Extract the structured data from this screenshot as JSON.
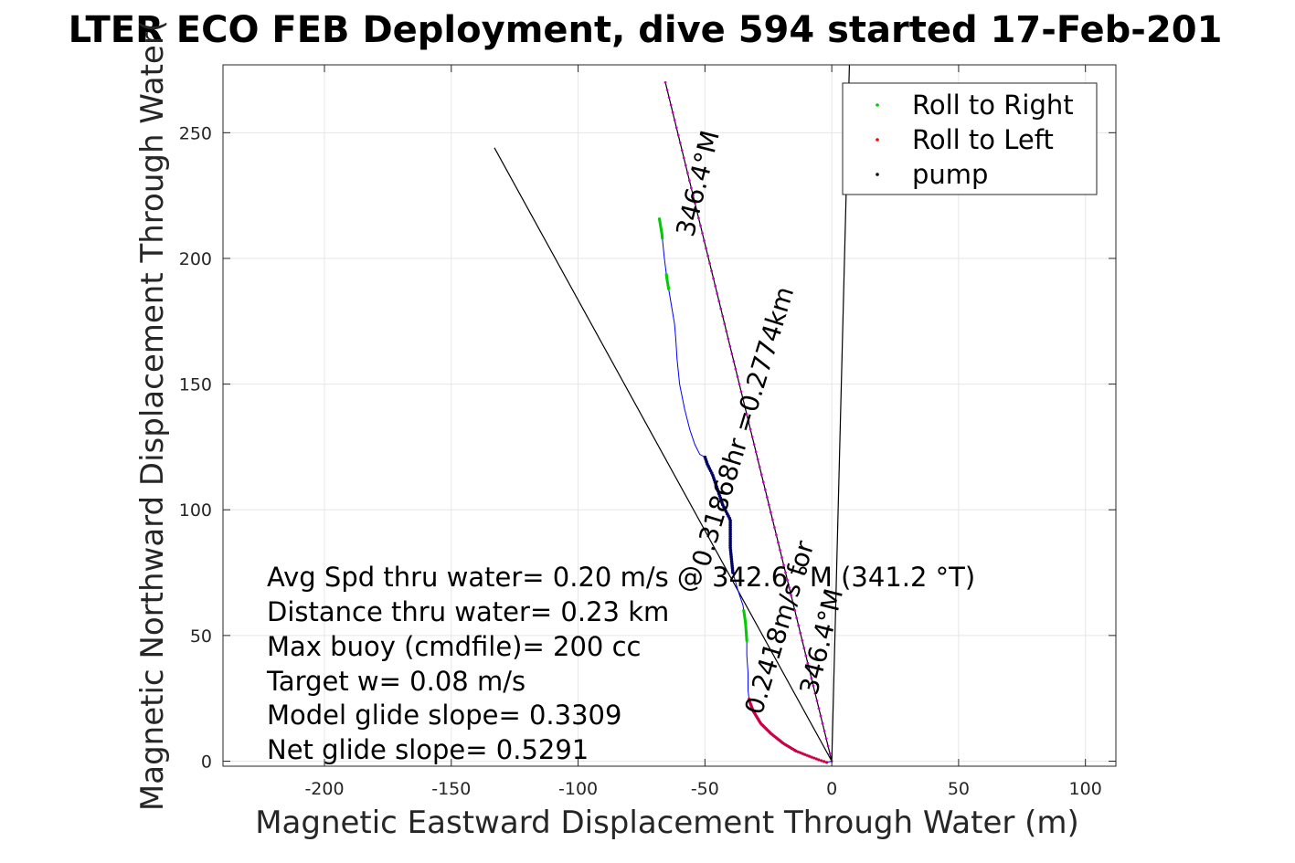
{
  "chart_data": {
    "type": "scatter",
    "title": "LTER ECO FEB Deployment, dive 594 started 17-Feb-201",
    "xlabel": "Magnetic Eastward Displacement Through Water (m)",
    "ylabel": "Magnetic Northward Displacement Through Water(",
    "xlim": [
      -240,
      112
    ],
    "ylim": [
      -2,
      277
    ],
    "xticks": [
      -200,
      -150,
      -100,
      -50,
      0,
      50,
      100
    ],
    "yticks": [
      0,
      50,
      100,
      150,
      200,
      250
    ],
    "grid": true,
    "legend_position": "top-right",
    "legend": [
      {
        "label": "Roll to Right",
        "color": "#00cc00"
      },
      {
        "label": "Roll to Left",
        "color": "#ff0000"
      },
      {
        "label": "pump",
        "color": "#000000"
      }
    ],
    "track": {
      "color": "#0000ff",
      "x": [
        -68,
        -67,
        -66,
        -65,
        -64,
        -63,
        -62,
        -61.5,
        -61,
        -60,
        -58,
        -56,
        -54,
        -52,
        -50,
        -49,
        -47,
        -45,
        -43,
        -41,
        -40,
        -40,
        -40,
        -39.5,
        -39,
        -37,
        -35,
        -34,
        -33.5,
        -33.5,
        -33,
        -33,
        -32.5,
        -31,
        -28,
        -24,
        -19,
        -14,
        -9,
        -5,
        -2,
        0
      ],
      "y": [
        216,
        210,
        200,
        192,
        186,
        180,
        174,
        168,
        160,
        150,
        140,
        132,
        126,
        122,
        121,
        118,
        114,
        108,
        102,
        98,
        96,
        90,
        85,
        80,
        75,
        68,
        62,
        55,
        48,
        42,
        35,
        28,
        24,
        20,
        15,
        11,
        7,
        4,
        2,
        0.5,
        -0.5,
        0
      ]
    },
    "roll_right_segments": [
      [
        -67.5,
        -66
      ],
      [
        -64.5,
        -62.5
      ],
      [
        -34.5,
        -33
      ]
    ],
    "roll_right_y": [
      [
        216,
        208
      ],
      [
        194,
        188
      ],
      [
        60,
        48
      ]
    ],
    "pump_range_y": [
      75,
      121
    ],
    "roll_left_range_y": [
      -0.5,
      25
    ],
    "lines": [
      {
        "x": [
          0,
          -65.6
        ],
        "y": [
          0,
          270
        ],
        "color": "#000000"
      },
      {
        "x": [
          0,
          -133
        ],
        "y": [
          0,
          244
        ],
        "color": "#000000"
      },
      {
        "x": [
          0,
          7
        ],
        "y": [
          0,
          279
        ],
        "color": "#000000"
      }
    ],
    "heading_line": {
      "x": [
        0,
        -65.6
      ],
      "y": [
        0,
        270
      ],
      "color": "#cc00cc"
    }
  },
  "annotations": [
    "Avg Spd thru water=  0.20 m/s @ 342.6 °M (341.2 °T)",
    "Distance thru water=  0.23 km",
    "Max buoy (cmdfile)= 200 cc",
    "Target w= 0.08 m/s",
    "Model glide slope= 0.3309",
    "Net glide slope= 0.5291"
  ],
  "rotated_labels": {
    "upper_1": "0.31868hr =0.2774km",
    "upper_2": "346.4°M",
    "lower_1": "0.2418m/s for",
    "lower_2": "346.4°M"
  }
}
